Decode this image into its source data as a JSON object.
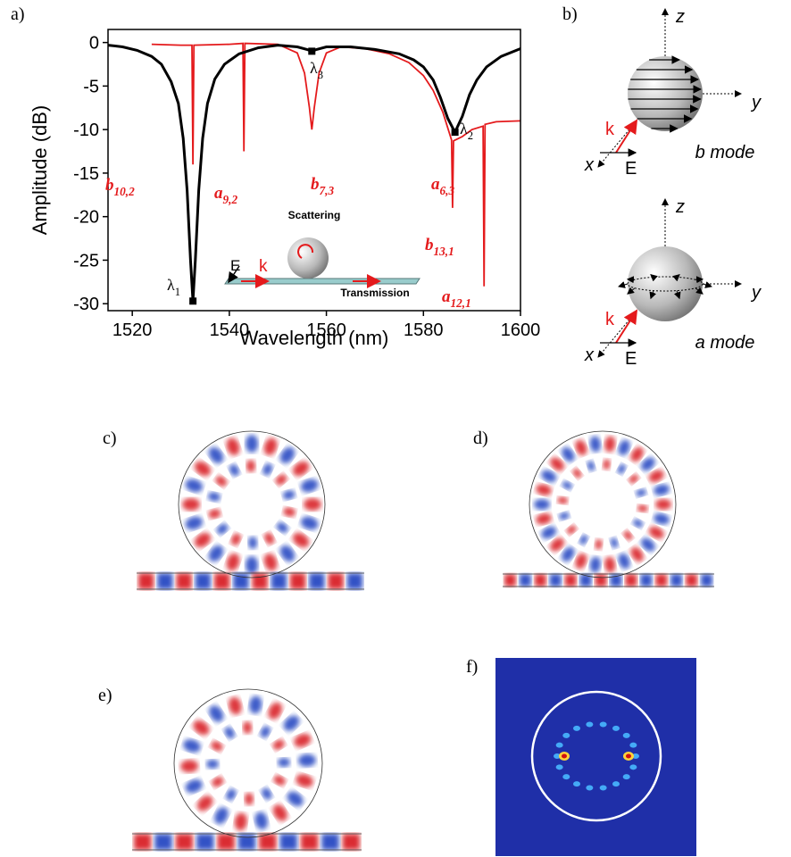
{
  "panels": {
    "a": "a)",
    "b": "b)",
    "c": "c)",
    "d": "d)",
    "e": "e)",
    "f": "f)"
  },
  "chart_data": {
    "type": "line",
    "x_label": "Wavelength (nm)",
    "y_label": "Amplitude (dB)",
    "xlim": [
      1515,
      1600
    ],
    "ylim": [
      -30.8,
      1.5
    ],
    "xticks": [
      1520,
      1540,
      1560,
      1580,
      1600
    ],
    "yticks": [
      0,
      -5,
      -10,
      -15,
      -20,
      -25,
      -30
    ],
    "series": [
      {
        "color": "#000000",
        "x": [
          1515,
          1518,
          1521,
          1524,
          1526,
          1528,
          1529.5,
          1530.5,
          1531.3,
          1532,
          1532.5,
          1533,
          1533.7,
          1534.5,
          1535.5,
          1537,
          1539,
          1542,
          1546,
          1550,
          1554,
          1556,
          1557,
          1558,
          1560,
          1565,
          1570,
          1575,
          1578,
          1580,
          1582,
          1583.5,
          1585,
          1586.5,
          1588,
          1589.5,
          1591,
          1593,
          1596,
          1600
        ],
        "values": [
          -0.3,
          -0.5,
          -0.9,
          -1.6,
          -2.5,
          -4.5,
          -7,
          -11,
          -17,
          -25,
          -29.7,
          -25,
          -17,
          -11,
          -7,
          -4.2,
          -2.5,
          -1.3,
          -0.6,
          -0.3,
          -0.5,
          -0.8,
          -1.0,
          -0.8,
          -0.5,
          -0.5,
          -0.8,
          -1.3,
          -2,
          -2.8,
          -4.3,
          -6.3,
          -8.7,
          -10.3,
          -8.5,
          -6,
          -4.3,
          -2.8,
          -1.6,
          -0.7
        ]
      },
      {
        "color": "#e41a1c",
        "x": [
          1524,
          1530,
          1532.3,
          1532.5,
          1532.7,
          1540,
          1542.8,
          1543,
          1543.2,
          1550,
          1554,
          1555.5,
          1556.5,
          1557,
          1557.5,
          1558.5,
          1560,
          1563,
          1568,
          1573,
          1577,
          1580,
          1582,
          1584,
          1585.8,
          1586,
          1586.2,
          1588,
          1590,
          1592.3,
          1592.5,
          1592.7,
          1595,
          1600
        ],
        "values": [
          -0.2,
          -0.3,
          -0.3,
          -14,
          -0.3,
          -0.2,
          -0.1,
          -12.5,
          -0.1,
          -0.2,
          -1.2,
          -3.5,
          -7.5,
          -10,
          -7.5,
          -3.5,
          -1.2,
          -0.5,
          -0.7,
          -1.3,
          -2.3,
          -3.8,
          -5.5,
          -8,
          -11.2,
          -19,
          -11.3,
          -10.8,
          -10,
          -9.6,
          -28,
          -9.4,
          -9.1,
          -9
        ]
      }
    ],
    "points": [
      {
        "label": "λ",
        "sub": "1",
        "x": 1532.5,
        "y": -29.7
      },
      {
        "label": "λ",
        "sub": "2",
        "x": 1586.5,
        "y": -10.3
      },
      {
        "label": "λ",
        "sub": "3",
        "x": 1557,
        "y": -1.0
      }
    ],
    "annotations": [
      {
        "label": "b",
        "sub": "10,2"
      },
      {
        "label": "a",
        "sub": "9,2"
      },
      {
        "label": "b",
        "sub": "7,3"
      },
      {
        "label": "a",
        "sub": "6,3"
      },
      {
        "label": "b",
        "sub": "13,1"
      },
      {
        "label": "a",
        "sub": "12,1"
      }
    ],
    "inset": {
      "scattering": "Scattering",
      "transmission": "Transmission",
      "field": "E",
      "wavevector": "k"
    }
  },
  "modes": [
    {
      "z": "z",
      "y": "y",
      "x": "x",
      "k": "k",
      "E": "E",
      "name": "b mode"
    },
    {
      "z": "z",
      "y": "y",
      "x": "x",
      "k": "k",
      "E": "E",
      "name": "a mode"
    }
  ]
}
